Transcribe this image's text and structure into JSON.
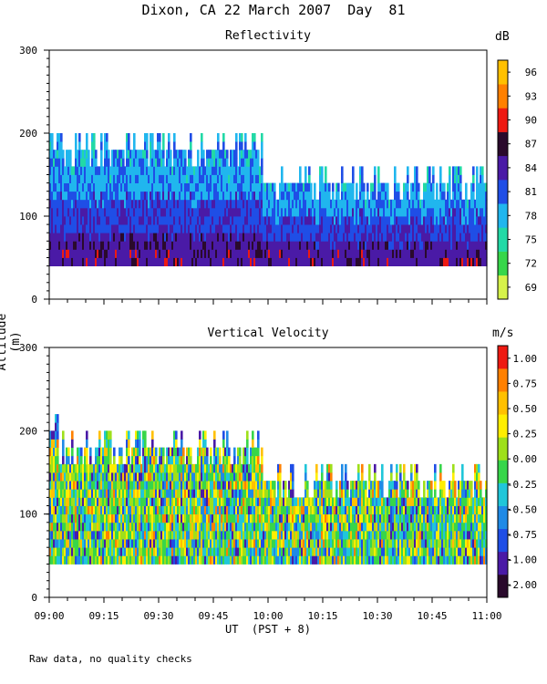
{
  "title": "Dixon, CA 22 March 2007  Day  81",
  "footnote": "Raw data, no quality checks",
  "colors": {
    "reflectivity_scale": [
      "#d6f24a",
      "#37d64a",
      "#22d9a6",
      "#20b6ee",
      "#1f4ee6",
      "#4a1aa6",
      "#2a0a2c",
      "#ee1a12",
      "#ff8000",
      "#ffc000"
    ],
    "velocity_scale": [
      "#2a0a2c",
      "#4a1aa6",
      "#1f4ee6",
      "#1f8ae6",
      "#20c6d9",
      "#37d64a",
      "#9ee01a",
      "#ffee00",
      "#ffc000",
      "#ff8000",
      "#ee1a12"
    ]
  },
  "chart_data": [
    {
      "type": "heatmap",
      "title": "Reflectivity",
      "xlabel": "UT  (PST + 8)",
      "ylabel": "Altitude (m)",
      "x_ticks": [
        "09:00",
        "09:15",
        "09:30",
        "09:45",
        "10:00",
        "10:15",
        "10:30",
        "10:45",
        "11:00"
      ],
      "xlim": [
        "09:00",
        "11:00"
      ],
      "y_ticks": [
        0,
        100,
        200,
        300
      ],
      "ylim": [
        0,
        300
      ],
      "colorbar": {
        "unit": "dB",
        "labels": [
          "69",
          "72",
          "75",
          "78",
          "81",
          "84",
          "87",
          "90",
          "93",
          "96"
        ]
      },
      "data_summary": {
        "min_altitude": 40,
        "top_altitude_before_1000": 180,
        "top_altitude_after_1000": 140,
        "dominant_values_low": "81-87 dB",
        "dominant_values_high": "75-81 dB"
      }
    },
    {
      "type": "heatmap",
      "title": "Vertical Velocity",
      "xlabel": "UT  (PST + 8)",
      "ylabel": "Altitude (m)",
      "x_ticks": [
        "09:00",
        "09:15",
        "09:30",
        "09:45",
        "10:00",
        "10:15",
        "10:30",
        "10:45",
        "11:00"
      ],
      "xlim": [
        "09:00",
        "11:00"
      ],
      "y_ticks": [
        0,
        100,
        200,
        300
      ],
      "ylim": [
        0,
        300
      ],
      "colorbar": {
        "unit": "m/s",
        "labels": [
          "-2.00",
          "-1.00",
          "-0.75",
          "-0.50",
          "-0.25",
          "0.00",
          "0.25",
          "0.50",
          "0.75",
          "1.00"
        ]
      },
      "data_summary": {
        "min_altitude": 40,
        "top_altitude_before_1000": 180,
        "top_altitude_after_1000": 140
      }
    }
  ]
}
